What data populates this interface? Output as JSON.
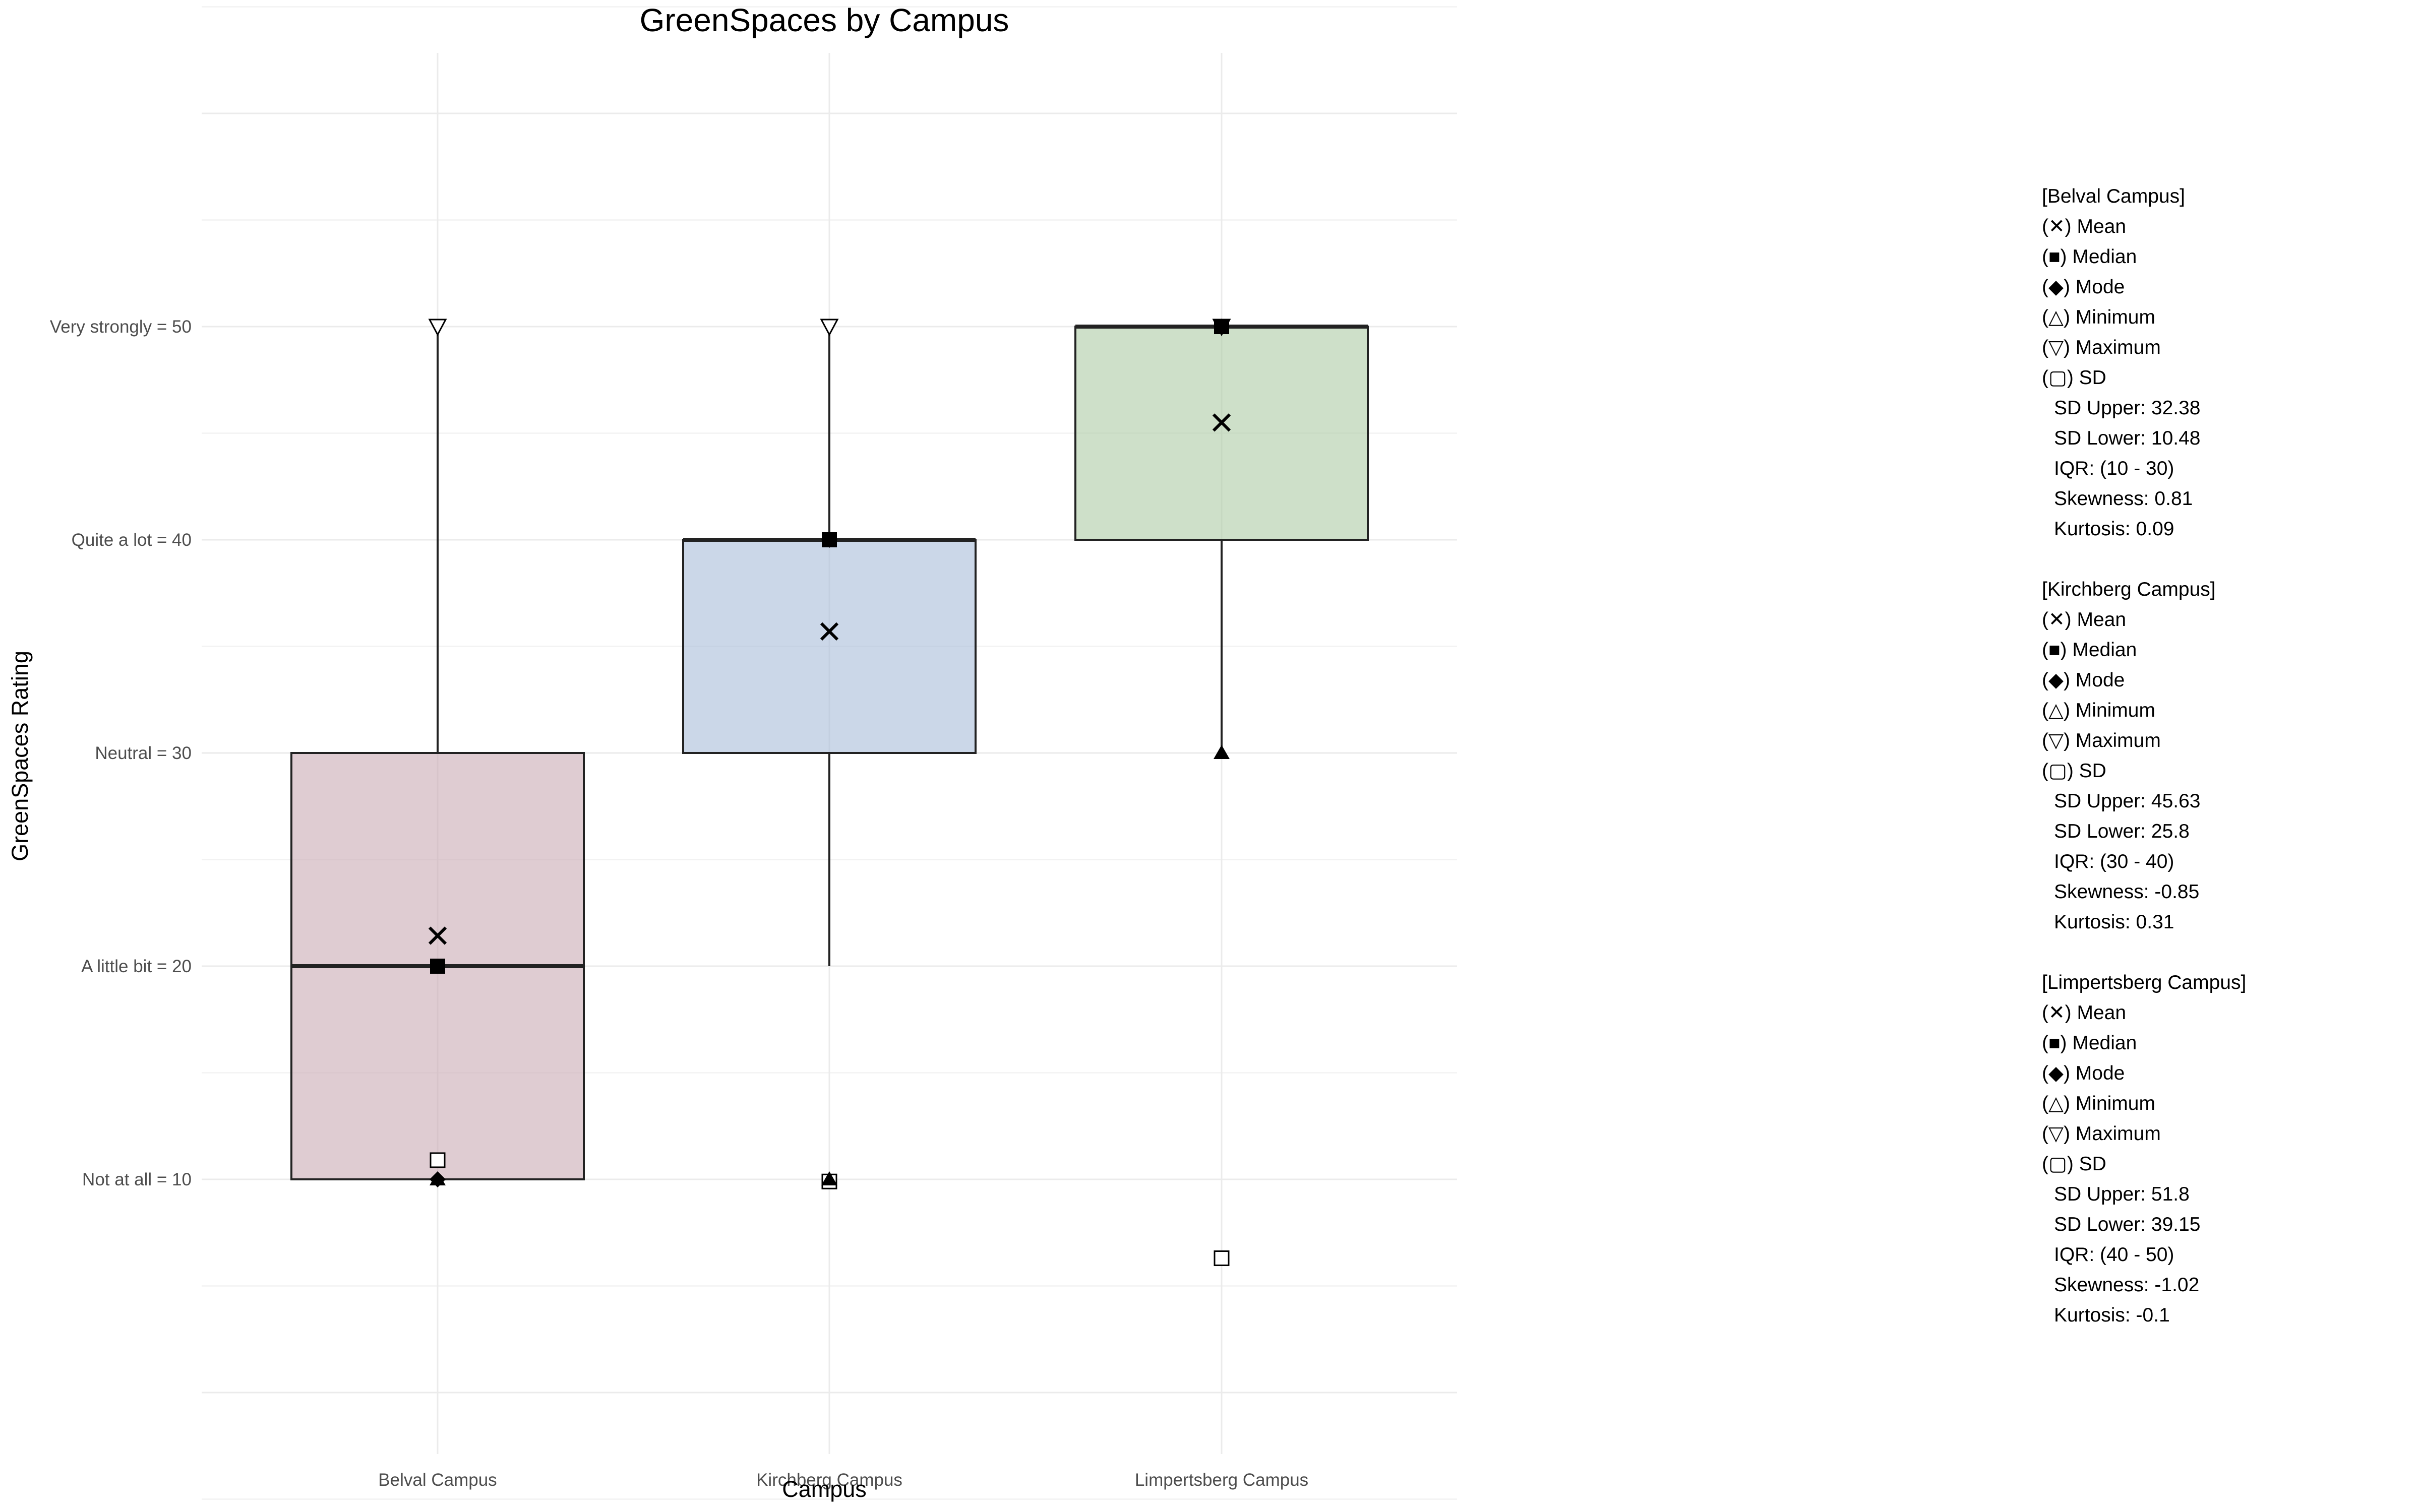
{
  "chart_data": {
    "type": "box",
    "title": "GreenSpaces by Campus",
    "xlabel": "Campus",
    "ylabel": "GreenSpaces Rating",
    "ylim": [
      -10,
      70
    ],
    "y_ticks": [
      {
        "value": 10,
        "label": "Not at all = 10"
      },
      {
        "value": 20,
        "label": "A little bit = 20"
      },
      {
        "value": 30,
        "label": "Neutral = 30"
      },
      {
        "value": 40,
        "label": "Quite a lot = 40"
      },
      {
        "value": 50,
        "label": "Very strongly = 50"
      }
    ],
    "grid": true,
    "legend_position": "right",
    "categories": [
      "Belval Campus",
      "Kirchberg Campus",
      "Limpertsberg Campus"
    ],
    "boxes": [
      {
        "name": "Belval Campus",
        "fill": "#c9aab4",
        "q1": 10,
        "median": 20,
        "q3": 30,
        "whisker_low": 10,
        "whisker_high": 50,
        "mean": 21.43,
        "mode": 10,
        "min": 10,
        "max": 50,
        "sd_marker": 10.9
      },
      {
        "name": "Kirchberg Campus",
        "fill": "#a9bcd8",
        "q1": 30,
        "median": 40,
        "q3": 40,
        "whisker_low": 20,
        "whisker_high": 50,
        "mean": 35.7,
        "mode": 40,
        "min": 10,
        "max": 50,
        "sd_marker": 9.9
      },
      {
        "name": "Limpertsberg Campus",
        "fill": "#aecba5",
        "q1": 40,
        "median": 50,
        "q3": 50,
        "whisker_low": 30,
        "whisker_high": 50,
        "mean": 45.5,
        "mode": 50,
        "min": 30,
        "max": 50,
        "sd_marker": 6.3
      }
    ]
  },
  "legend": {
    "groups": [
      {
        "header": "[Belval Campus]",
        "mean": "(✕) Mean",
        "median": "(■) Median",
        "mode": "(◆) Mode",
        "minimum": "(△) Minimum",
        "maximum": "(▽) Maximum",
        "sd": "(▢) SD",
        "sd_upper": "SD Upper: 32.38",
        "sd_lower": "SD Lower: 10.48",
        "iqr": "IQR: (10 - 30)",
        "skewness": "Skewness: 0.81",
        "kurtosis": "Kurtosis: 0.09"
      },
      {
        "header": "[Kirchberg Campus]",
        "mean": "(✕) Mean",
        "median": "(■) Median",
        "mode": "(◆) Mode",
        "minimum": "(△) Minimum",
        "maximum": "(▽) Maximum",
        "sd": "(▢) SD",
        "sd_upper": "SD Upper: 45.63",
        "sd_lower": "SD Lower: 25.8",
        "iqr": "IQR: (30 - 40)",
        "skewness": "Skewness: -0.85",
        "kurtosis": "Kurtosis: 0.31"
      },
      {
        "header": "[Limpertsberg Campus]",
        "mean": "(✕) Mean",
        "median": "(■) Median",
        "mode": "(◆) Mode",
        "minimum": "(△) Minimum",
        "maximum": "(▽) Maximum",
        "sd": "(▢) SD",
        "sd_upper": "SD Upper: 51.8",
        "sd_lower": "SD Lower: 39.15",
        "iqr": "IQR: (40 - 50)",
        "skewness": "Skewness: -1.02",
        "kurtosis": "Kurtosis: -0.1"
      }
    ]
  }
}
